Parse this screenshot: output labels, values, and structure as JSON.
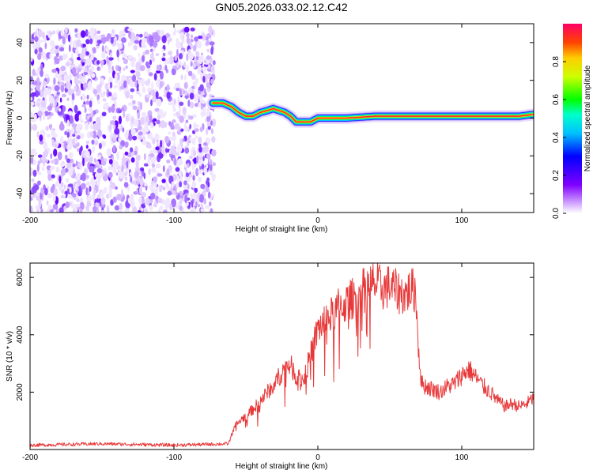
{
  "title": "GN05.2026.033.02.12.C42",
  "chart_data": [
    {
      "type": "heatmap",
      "name": "spectrogram",
      "title": "GN05.2026.033.02.12.C42",
      "xlabel": "Height of straight line (km)",
      "ylabel": "Frequency (Hz)",
      "xlim": [
        -200,
        150
      ],
      "ylim": [
        -50,
        50
      ],
      "xticks": [
        -200,
        -100,
        0,
        100
      ],
      "yticks": [
        -40,
        -20,
        0,
        20,
        40
      ],
      "colorbar": {
        "label": "Normalized spectral amplitude",
        "range": [
          0,
          1
        ],
        "ticks": [
          "0.0",
          "0.2",
          "0.4",
          "0.6",
          "0.8"
        ]
      },
      "noise_region": {
        "x_from": -200,
        "x_to": -72,
        "freq_from": -50,
        "freq_to": 47
      },
      "ridge": {
        "x": [
          -73,
          -66,
          -60,
          -55,
          -50,
          -45,
          -40,
          -35,
          -31,
          -27,
          -23,
          -19,
          -15,
          -10,
          -5,
          0,
          10,
          20,
          40,
          60,
          80,
          100,
          120,
          140,
          150
        ],
        "freq": [
          8,
          8,
          6,
          3,
          1,
          1,
          3,
          4,
          5,
          4,
          3,
          1,
          -2,
          -2,
          -2,
          0,
          0,
          0,
          1,
          1,
          1,
          1,
          1,
          1,
          2
        ]
      }
    },
    {
      "type": "line",
      "name": "snr",
      "xlabel": "Height of straight line (km)",
      "ylabel": "SNR (10 * v/v)",
      "xlim": [
        -200,
        150
      ],
      "ylim": [
        0,
        6500
      ],
      "xticks": [
        -200,
        -100,
        0,
        100
      ],
      "yticks": [
        2000,
        4000,
        6000
      ],
      "series": [
        {
          "name": "SNR",
          "color": "#e8393a",
          "x": [
            -200,
            -150,
            -100,
            -62,
            -58,
            -54,
            -50,
            -45,
            -40,
            -35,
            -30,
            -25,
            -20,
            -15,
            -10,
            -5,
            0,
            5,
            10,
            15,
            20,
            25,
            30,
            35,
            40,
            45,
            50,
            55,
            60,
            65,
            68,
            70,
            72,
            75,
            80,
            85,
            90,
            95,
            100,
            105,
            110,
            115,
            120,
            125,
            130,
            135,
            140,
            145,
            150
          ],
          "y": [
            150,
            200,
            150,
            200,
            800,
            1000,
            1200,
            1400,
            1700,
            2000,
            2300,
            2700,
            3000,
            2600,
            2400,
            3300,
            4200,
            4500,
            4700,
            5000,
            5100,
            5300,
            5500,
            5700,
            5800,
            5600,
            5700,
            5500,
            5400,
            5600,
            5500,
            3500,
            2300,
            2200,
            2100,
            2000,
            2200,
            2300,
            2600,
            2800,
            2500,
            2200,
            2000,
            1700,
            1500,
            1600,
            1500,
            1600,
            1800
          ]
        }
      ]
    }
  ]
}
